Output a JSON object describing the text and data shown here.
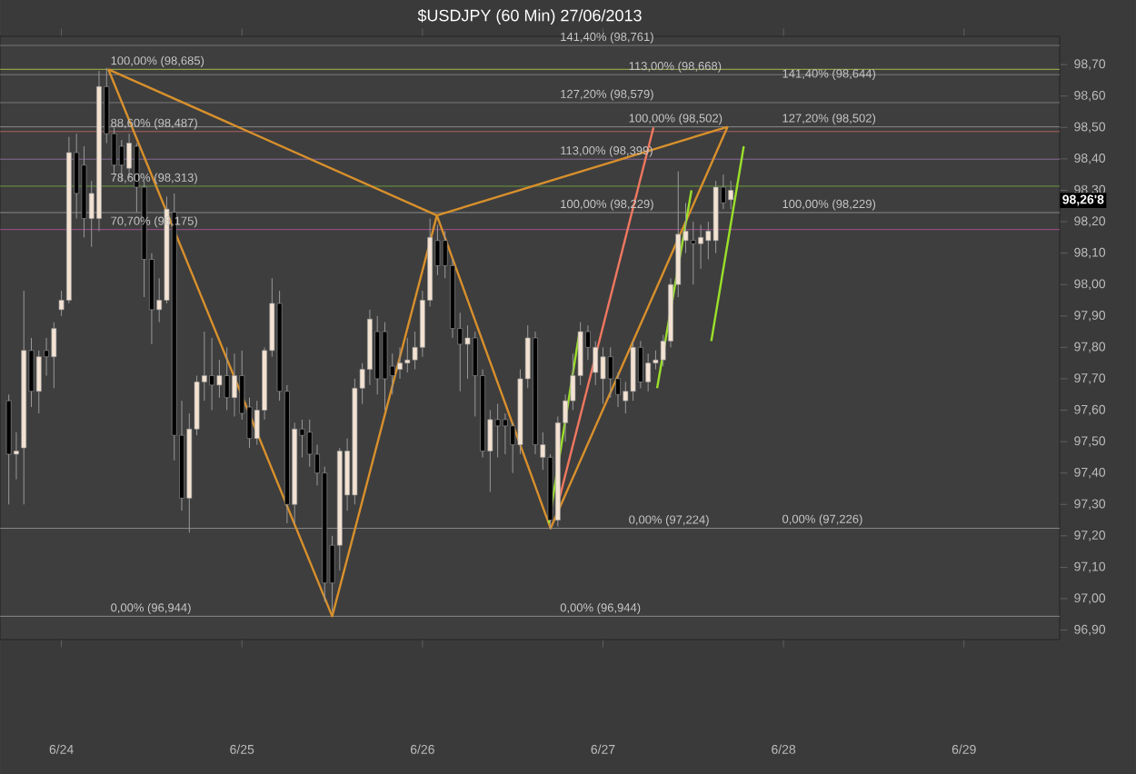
{
  "chart_data": {
    "type": "candlestick",
    "title": "$USDJPY (60 Min)  27/06/2013",
    "x": [
      "2013-06-23T17:00",
      "2013-06-23T18:00",
      "2013-06-23T19:00",
      "2013-06-23T20:00",
      "2013-06-23T21:00",
      "2013-06-23T22:00",
      "2013-06-23T23:00",
      "2013-06-24T00:00",
      "2013-06-24T01:00",
      "2013-06-24T02:00",
      "2013-06-24T03:00",
      "2013-06-24T04:00",
      "2013-06-24T05:00",
      "2013-06-24T06:00",
      "2013-06-24T07:00",
      "2013-06-24T08:00",
      "2013-06-24T09:00",
      "2013-06-24T10:00",
      "2013-06-24T11:00",
      "2013-06-24T12:00",
      "2013-06-24T13:00",
      "2013-06-24T14:00",
      "2013-06-24T15:00",
      "2013-06-24T16:00",
      "2013-06-24T17:00",
      "2013-06-24T18:00",
      "2013-06-24T19:00",
      "2013-06-24T20:00",
      "2013-06-24T21:00",
      "2013-06-24T22:00",
      "2013-06-24T23:00",
      "2013-06-25T00:00",
      "2013-06-25T01:00",
      "2013-06-25T02:00",
      "2013-06-25T03:00",
      "2013-06-25T04:00",
      "2013-06-25T05:00",
      "2013-06-25T06:00",
      "2013-06-25T07:00",
      "2013-06-25T08:00",
      "2013-06-25T09:00",
      "2013-06-25T10:00",
      "2013-06-25T11:00",
      "2013-06-25T12:00",
      "2013-06-25T13:00",
      "2013-06-25T14:00",
      "2013-06-25T15:00",
      "2013-06-25T16:00",
      "2013-06-25T17:00",
      "2013-06-25T18:00",
      "2013-06-25T19:00",
      "2013-06-25T20:00",
      "2013-06-25T21:00",
      "2013-06-25T22:00",
      "2013-06-25T23:00",
      "2013-06-26T00:00",
      "2013-06-26T01:00",
      "2013-06-26T02:00",
      "2013-06-26T03:00",
      "2013-06-26T04:00",
      "2013-06-26T05:00",
      "2013-06-26T06:00",
      "2013-06-26T07:00",
      "2013-06-26T08:00",
      "2013-06-26T09:00",
      "2013-06-26T10:00",
      "2013-06-26T11:00",
      "2013-06-26T12:00",
      "2013-06-26T13:00",
      "2013-06-26T14:00",
      "2013-06-26T15:00",
      "2013-06-26T16:00",
      "2013-06-26T17:00",
      "2013-06-26T18:00",
      "2013-06-26T19:00",
      "2013-06-26T20:00",
      "2013-06-26T21:00",
      "2013-06-26T22:00",
      "2013-06-26T23:00",
      "2013-06-27T00:00",
      "2013-06-27T01:00",
      "2013-06-27T02:00",
      "2013-06-27T03:00",
      "2013-06-27T04:00",
      "2013-06-27T05:00",
      "2013-06-27T06:00",
      "2013-06-27T07:00",
      "2013-06-27T08:00",
      "2013-06-27T09:00",
      "2013-06-27T10:00",
      "2013-06-27T11:00",
      "2013-06-27T12:00",
      "2013-06-27T13:00",
      "2013-06-27T14:00",
      "2013-06-27T15:00",
      "2013-06-27T16:00",
      "2013-06-27T17:00"
    ],
    "ohlc": [
      [
        97.63,
        97.65,
        97.3,
        97.46
      ],
      [
        97.46,
        97.53,
        97.38,
        97.47
      ],
      [
        97.48,
        97.98,
        97.3,
        97.79
      ],
      [
        97.79,
        97.83,
        97.61,
        97.66
      ],
      [
        97.66,
        97.79,
        97.59,
        97.77
      ],
      [
        97.79,
        97.83,
        97.71,
        97.77
      ],
      [
        97.77,
        97.88,
        97.67,
        97.86
      ],
      [
        97.92,
        97.98,
        97.9,
        97.95
      ],
      [
        97.95,
        98.47,
        97.94,
        98.42
      ],
      [
        98.42,
        98.48,
        98.21,
        98.29
      ],
      [
        98.38,
        98.44,
        98.15,
        98.21
      ],
      [
        98.21,
        98.33,
        98.12,
        98.29
      ],
      [
        98.21,
        98.68,
        98.17,
        98.63
      ],
      [
        98.63,
        98.69,
        98.45,
        98.48
      ],
      [
        98.48,
        98.5,
        98.35,
        98.38
      ],
      [
        98.44,
        98.46,
        98.33,
        98.38
      ],
      [
        98.37,
        98.48,
        98.34,
        98.45
      ],
      [
        98.44,
        98.45,
        98.23,
        98.31
      ],
      [
        98.31,
        98.33,
        97.96,
        98.08
      ],
      [
        98.08,
        98.1,
        97.81,
        97.92
      ],
      [
        97.92,
        98.02,
        97.88,
        97.95
      ],
      [
        97.95,
        98.28,
        97.94,
        98.24
      ],
      [
        98.23,
        98.29,
        97.44,
        97.52
      ],
      [
        97.52,
        97.63,
        97.28,
        97.32
      ],
      [
        97.32,
        97.59,
        97.21,
        97.54
      ],
      [
        97.54,
        97.71,
        97.52,
        97.69
      ],
      [
        97.69,
        97.85,
        97.63,
        97.71
      ],
      [
        97.71,
        97.83,
        97.6,
        97.68
      ],
      [
        97.68,
        97.76,
        97.64,
        97.71
      ],
      [
        97.71,
        97.8,
        97.6,
        97.64
      ],
      [
        97.64,
        97.78,
        97.58,
        97.71
      ],
      [
        97.71,
        97.79,
        97.57,
        97.59
      ],
      [
        97.61,
        97.64,
        97.48,
        97.51
      ],
      [
        97.51,
        97.63,
        97.49,
        97.6
      ],
      [
        97.6,
        97.8,
        97.57,
        97.79
      ],
      [
        97.79,
        98.02,
        97.77,
        97.94
      ],
      [
        97.94,
        97.98,
        97.63,
        97.66
      ],
      [
        97.66,
        97.68,
        97.24,
        97.3
      ],
      [
        97.3,
        97.56,
        97.24,
        97.54
      ],
      [
        97.54,
        97.57,
        97.45,
        97.52
      ],
      [
        97.53,
        97.57,
        97.42,
        97.46
      ],
      [
        97.46,
        97.49,
        97.36,
        97.4
      ],
      [
        97.4,
        97.42,
        96.99,
        97.05
      ],
      [
        97.17,
        97.2,
        96.96,
        97.05
      ],
      [
        97.17,
        97.48,
        97.09,
        97.47
      ],
      [
        97.33,
        97.51,
        97.28,
        97.47
      ],
      [
        97.33,
        97.7,
        97.3,
        97.67
      ],
      [
        97.67,
        97.75,
        97.62,
        97.73
      ],
      [
        97.73,
        97.92,
        97.68,
        97.89
      ],
      [
        97.85,
        97.9,
        97.65,
        97.7
      ],
      [
        97.85,
        97.88,
        97.6,
        97.7
      ],
      [
        97.74,
        97.78,
        97.65,
        97.71
      ],
      [
        97.73,
        97.8,
        97.7,
        97.75
      ],
      [
        97.75,
        97.83,
        97.72,
        97.76
      ],
      [
        97.76,
        97.85,
        97.73,
        97.8
      ],
      [
        97.8,
        97.98,
        97.77,
        97.95
      ],
      [
        97.95,
        98.21,
        97.93,
        98.15
      ],
      [
        98.14,
        98.19,
        98.03,
        98.06
      ],
      [
        98.14,
        98.17,
        98.02,
        98.06
      ],
      [
        98.06,
        98.08,
        97.83,
        97.86
      ],
      [
        97.86,
        97.91,
        97.66,
        97.81
      ],
      [
        97.81,
        97.87,
        97.7,
        97.83
      ],
      [
        97.83,
        97.85,
        97.58,
        97.71
      ],
      [
        97.71,
        97.73,
        97.45,
        97.47
      ],
      [
        97.47,
        97.6,
        97.34,
        97.57
      ],
      [
        97.57,
        97.62,
        97.45,
        97.55
      ],
      [
        97.57,
        97.59,
        97.46,
        97.55
      ],
      [
        97.55,
        97.56,
        97.4,
        97.49
      ],
      [
        97.49,
        97.73,
        97.46,
        97.7
      ],
      [
        97.7,
        97.87,
        97.67,
        97.83
      ],
      [
        97.83,
        97.85,
        97.46,
        97.49
      ],
      [
        97.45,
        97.53,
        97.41,
        97.49
      ],
      [
        97.45,
        97.46,
        97.22,
        97.25
      ],
      [
        97.25,
        97.58,
        97.23,
        97.56
      ],
      [
        97.56,
        97.65,
        97.5,
        97.63
      ],
      [
        97.63,
        97.78,
        97.6,
        97.71
      ],
      [
        97.71,
        97.88,
        97.68,
        97.85
      ],
      [
        97.85,
        97.87,
        97.76,
        97.8
      ],
      [
        97.72,
        97.82,
        97.68,
        97.8
      ],
      [
        97.7,
        97.8,
        97.62,
        97.77
      ],
      [
        97.77,
        97.8,
        97.64,
        97.7
      ],
      [
        97.7,
        97.72,
        97.61,
        97.65
      ],
      [
        97.63,
        97.69,
        97.59,
        97.66
      ],
      [
        97.66,
        97.82,
        97.63,
        97.8
      ],
      [
        97.8,
        97.82,
        97.67,
        97.69
      ],
      [
        97.69,
        97.78,
        97.66,
        97.75
      ],
      [
        97.75,
        97.79,
        97.73,
        97.76
      ],
      [
        97.76,
        97.84,
        97.74,
        97.82
      ],
      [
        97.82,
        98.02,
        97.8,
        98.0
      ],
      [
        98.0,
        98.36,
        97.96,
        98.16
      ],
      [
        98.14,
        98.26,
        98.1,
        98.17
      ],
      [
        98.14,
        98.2,
        98.0,
        98.13
      ],
      [
        98.13,
        98.19,
        98.05,
        98.15
      ],
      [
        98.14,
        98.2,
        98.08,
        98.17
      ],
      [
        98.14,
        98.33,
        98.1,
        98.31
      ],
      [
        98.31,
        98.35,
        98.24,
        98.26
      ],
      [
        98.27,
        98.33,
        98.24,
        98.3
      ]
    ],
    "series": [
      {
        "type": "line",
        "color": "#d8902c",
        "x": [
          "2013-06-24T06:14",
          "2013-06-25T12:00",
          "2013-06-26T01:55",
          "2013-06-26T17:02",
          "2013-06-27T16:34"
        ],
        "values": [
          98.685,
          96.944,
          98.22,
          97.224,
          98.502
        ]
      },
      {
        "type": "line",
        "color": "#d8902c",
        "x": [
          "2013-06-24T06:14",
          "2013-06-26T01:55",
          "2013-06-27T16:34"
        ],
        "values": [
          98.685,
          98.22,
          98.502
        ]
      },
      {
        "type": "line",
        "color": "#f07860",
        "x": [
          "2013-06-27T06:43",
          "2013-06-26T18:00"
        ],
        "values": [
          98.5,
          97.3
        ]
      },
      {
        "type": "line",
        "color": "#9be02a",
        "x": [
          "2013-06-26T16:48",
          "2013-06-26T20:53"
        ],
        "values": [
          97.24,
          97.85
        ]
      },
      {
        "type": "line",
        "color": "#9be02a",
        "x": [
          "2013-06-27T07:12",
          "2013-06-27T11:46"
        ],
        "values": [
          97.67,
          98.3
        ]
      },
      {
        "type": "line",
        "color": "#9be02a",
        "x": [
          "2013-06-27T14:24",
          "2013-06-27T18:43"
        ],
        "values": [
          97.82,
          98.44
        ]
      }
    ],
    "ref_lines": [
      {
        "axis": "y",
        "value": 98.761,
        "color": "#777777"
      },
      {
        "axis": "y",
        "value": 98.685,
        "color": "#a8b84a"
      },
      {
        "axis": "y",
        "value": 98.668,
        "color": "#7a7a7a"
      },
      {
        "axis": "y",
        "value": 98.579,
        "color": "#7a7a7a"
      },
      {
        "axis": "y",
        "value": 98.502,
        "color": "#8a8a8a"
      },
      {
        "axis": "y",
        "value": 98.487,
        "color": "#b06060"
      },
      {
        "axis": "y",
        "value": 98.399,
        "color": "#8a6a9a"
      },
      {
        "axis": "y",
        "value": 98.313,
        "color": "#6a9a40"
      },
      {
        "axis": "y",
        "value": 98.229,
        "color": "#8a8a8a"
      },
      {
        "axis": "y",
        "value": 98.175,
        "color": "#a05090"
      },
      {
        "axis": "y",
        "value": 97.224,
        "color": "#8a8a8a"
      },
      {
        "axis": "y",
        "value": 96.944,
        "color": "#8a8a8a"
      }
    ],
    "annotations": [
      {
        "text": "100,00% (98,685)",
        "x": "2013-06-24T06:14",
        "y": 98.685
      },
      {
        "text": "88,60% (98,487)",
        "x": "2013-06-24T06:14",
        "y": 98.487
      },
      {
        "text": "78,60% (98,313)",
        "x": "2013-06-24T06:14",
        "y": 98.313
      },
      {
        "text": "70,70% (98,175)",
        "x": "2013-06-24T06:14",
        "y": 98.175
      },
      {
        "text": "0,00% (96,944)",
        "x": "2013-06-24T06:14",
        "y": 96.944
      },
      {
        "text": "0,00% (96,944)",
        "x": "2013-06-26T18:00",
        "y": 96.944
      },
      {
        "text": "141,40% (98,761)",
        "x": "2013-06-26T18:00",
        "y": 98.761
      },
      {
        "text": "113,00% (98,668)",
        "x": "2013-06-27T03:07",
        "y": 98.668
      },
      {
        "text": "127,20% (98,579)",
        "x": "2013-06-26T18:00",
        "y": 98.579
      },
      {
        "text": "100,00% (98,502)",
        "x": "2013-06-27T03:07",
        "y": 98.502
      },
      {
        "text": "113,00% (98,399)",
        "x": "2013-06-26T18:00",
        "y": 98.399
      },
      {
        "text": "100,00% (98,229)",
        "x": "2013-06-26T18:00",
        "y": 98.229
      },
      {
        "text": "100,00% (98,229)",
        "x": "2013-06-27T23:31",
        "y": 98.229
      },
      {
        "text": "0,00% (97,224)",
        "x": "2013-06-27T03:07",
        "y": 97.224
      },
      {
        "text": "0,00% (97,226)",
        "x": "2013-06-27T23:31",
        "y": 97.226
      },
      {
        "text": "141,40% (98,644)",
        "x": "2013-06-27T23:31",
        "y": 98.644
      },
      {
        "text": "127,20% (98,502)",
        "x": "2013-06-27T23:31",
        "y": 98.502
      },
      {
        "text": "98,26'8",
        "y": 98.268
      }
    ],
    "xlim": [
      "2013-06-23T15:50",
      "2013-06-29T12:43"
    ],
    "ylim": [
      96.87,
      98.79
    ],
    "xticks": [
      {
        "value": "2013-06-24",
        "label": "6/24"
      },
      {
        "value": "2013-06-25",
        "label": "6/25"
      },
      {
        "value": "2013-06-26",
        "label": "6/26"
      },
      {
        "value": "2013-06-27",
        "label": "6/27"
      },
      {
        "value": "2013-06-28",
        "label": "6/28"
      },
      {
        "value": "2013-06-29",
        "label": "6/29"
      }
    ],
    "yticks": [
      {
        "value": 96.9,
        "label": "96,90"
      },
      {
        "value": 97.0,
        "label": "97,00"
      },
      {
        "value": 97.1,
        "label": "97,10"
      },
      {
        "value": 97.2,
        "label": "97,20"
      },
      {
        "value": 97.3,
        "label": "97,30"
      },
      {
        "value": 97.4,
        "label": "97,40"
      },
      {
        "value": 97.5,
        "label": "97,50"
      },
      {
        "value": 97.6,
        "label": "97,60"
      },
      {
        "value": 97.7,
        "label": "97,70"
      },
      {
        "value": 97.8,
        "label": "97,80"
      },
      {
        "value": 97.9,
        "label": "97,90"
      },
      {
        "value": 98.0,
        "label": "98,00"
      },
      {
        "value": 98.1,
        "label": "98,10"
      },
      {
        "value": 98.2,
        "label": "98,20"
      },
      {
        "value": 98.3,
        "label": "98,30"
      },
      {
        "value": 98.4,
        "label": "98,40"
      },
      {
        "value": 98.5,
        "label": "98,50"
      },
      {
        "value": 98.6,
        "label": "98,60"
      },
      {
        "value": 98.7,
        "label": "98,70"
      }
    ]
  }
}
